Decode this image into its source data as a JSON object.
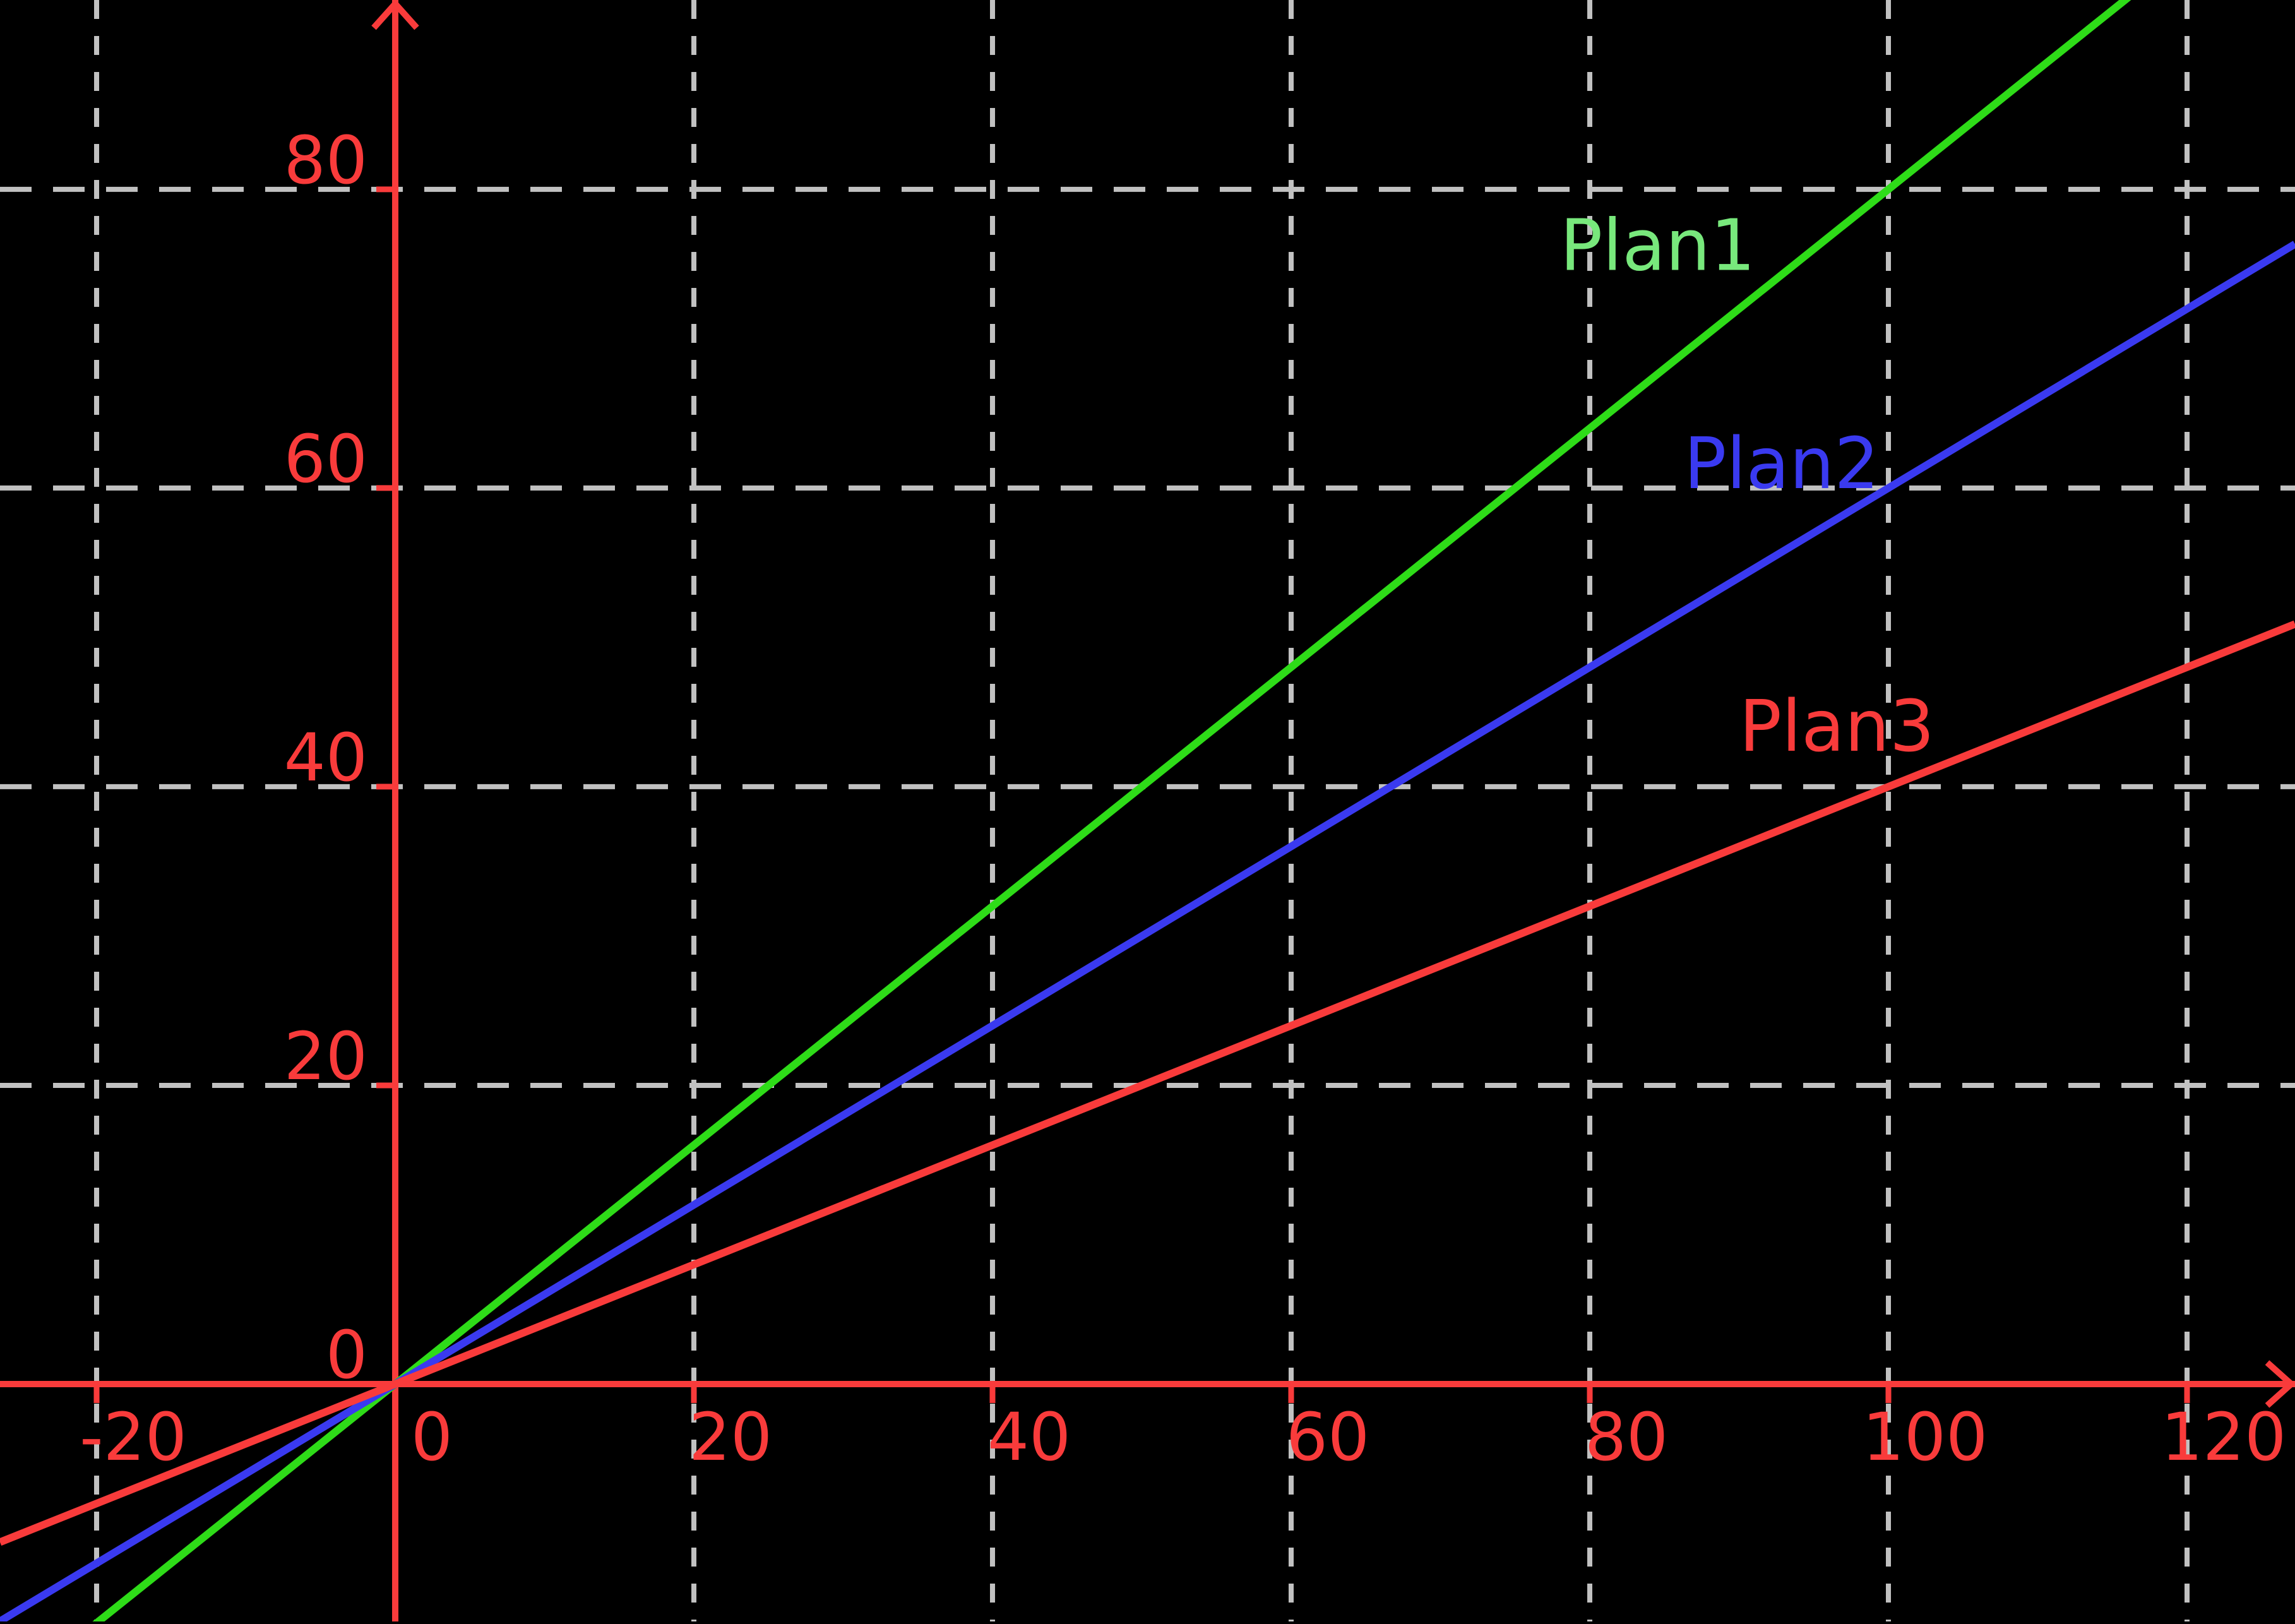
{
  "page": {
    "background": "#000000"
  },
  "chart_data": {
    "type": "line",
    "title": "",
    "xlabel": "",
    "ylabel": "",
    "background": "#000000",
    "axes": {
      "color": "#f93b3b",
      "xlim": [
        -26.47,
        127.23
      ],
      "ylim": [
        -15.9,
        92.68
      ],
      "x_ticks": [
        -20,
        0,
        20,
        40,
        60,
        80,
        100,
        120
      ],
      "x_tick_labels": [
        "-20",
        "0",
        "20",
        "40",
        "60",
        "80",
        "100",
        "120"
      ],
      "y_ticks": [
        0,
        20,
        40,
        60,
        80
      ],
      "y_tick_labels": [
        "0",
        "20",
        "40",
        "60",
        "80"
      ],
      "arrows": [
        "x-positive",
        "y-positive"
      ]
    },
    "grid": {
      "on": true,
      "style": "dashed",
      "color": "#c1c1c1",
      "x_gridlines": [
        -20,
        20,
        40,
        60,
        80,
        100,
        120
      ],
      "y_gridlines": [
        20,
        40,
        60,
        80
      ]
    },
    "legend_position": "labels-on-plot",
    "series": [
      {
        "label": "Plan1",
        "slope": 0.8,
        "intercept": 0,
        "key_points": [
          [
            0,
            0
          ],
          [
            100,
            80
          ]
        ],
        "line_color": "#2edc18",
        "label_color": "#78e87c",
        "label_anchor": {
          "x": 78.0,
          "y": 74.6
        }
      },
      {
        "label": "Plan2",
        "slope": 0.6,
        "intercept": 0,
        "key_points": [
          [
            0,
            0
          ],
          [
            100,
            60
          ]
        ],
        "line_color": "#3a3af0",
        "label_color": "#3a3af0",
        "label_anchor": {
          "x": 86.3,
          "y": 60.0
        }
      },
      {
        "label": "Plan3",
        "slope": 0.4,
        "intercept": 0,
        "key_points": [
          [
            0,
            0
          ],
          [
            100,
            40
          ]
        ],
        "line_color": "#f93b3b",
        "label_color": "#f93b3b",
        "label_anchor": {
          "x": 90.0,
          "y": 42.4
        }
      }
    ]
  }
}
